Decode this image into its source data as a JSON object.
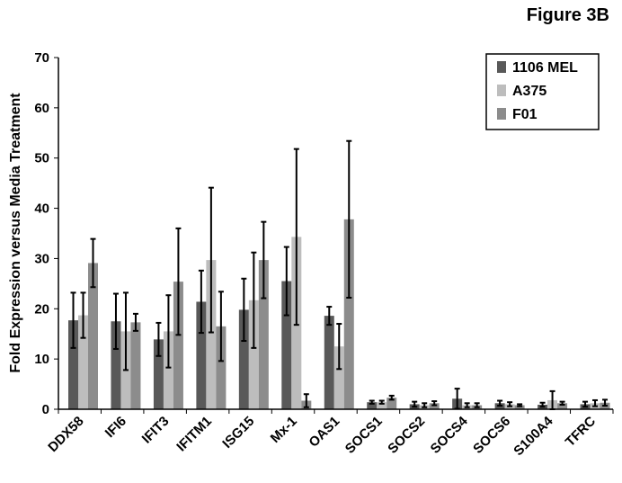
{
  "figure_label": "Figure 3B",
  "chart_data": {
    "type": "bar",
    "title": "",
    "xlabel": "",
    "ylabel": "Fold Expression versus Media Treatment",
    "ylim": [
      0,
      70
    ],
    "yticks": [
      0,
      10,
      20,
      30,
      40,
      50,
      60,
      70
    ],
    "grid": false,
    "legend_position": "top-right",
    "categories": [
      "DDX58",
      "IFI6",
      "IFIT3",
      "IFITM1",
      "ISG15",
      "Mx-1",
      "OAS1",
      "SOCS1",
      "SOCS2",
      "SOCS4",
      "SOCS6",
      "S100A4",
      "TFRC"
    ],
    "series": [
      {
        "name": "1106 MEL",
        "color": "#595959",
        "values": [
          17.7,
          17.5,
          13.9,
          21.4,
          19.8,
          25.5,
          18.6,
          1.4,
          1.0,
          2.1,
          1.2,
          0.9,
          1.0
        ],
        "errors": [
          5.5,
          5.5,
          3.3,
          6.2,
          6.2,
          6.8,
          1.8,
          0.3,
          0.5,
          2.0,
          0.5,
          0.4,
          0.5
        ]
      },
      {
        "name": "A375",
        "color": "#bdbdbd",
        "values": [
          18.7,
          15.5,
          15.5,
          29.7,
          21.7,
          34.3,
          12.5,
          1.4,
          0.8,
          0.8,
          1.0,
          1.8,
          1.2
        ]
      },
      {
        "name": "F01",
        "color": "#8c8c8c",
        "values": [
          29.1,
          17.3,
          25.4,
          16.5,
          29.7,
          1.7,
          37.8,
          2.3,
          1.2,
          0.8,
          0.8,
          1.2,
          1.3
        ]
      }
    ],
    "errors": [
      [
        5.5,
        5.5,
        3.3,
        6.2,
        6.2,
        6.8,
        1.8,
        0.3,
        0.5,
        2.0,
        0.5,
        0.4,
        0.5
      ],
      [
        4.5,
        7.7,
        7.2,
        14.4,
        9.5,
        17.5,
        4.5,
        0.3,
        0.4,
        0.4,
        0.4,
        1.8,
        0.6
      ],
      [
        4.8,
        1.7,
        10.6,
        6.9,
        7.6,
        1.3,
        15.6,
        0.4,
        0.4,
        0.4,
        0.2,
        0.3,
        0.6
      ]
    ]
  }
}
